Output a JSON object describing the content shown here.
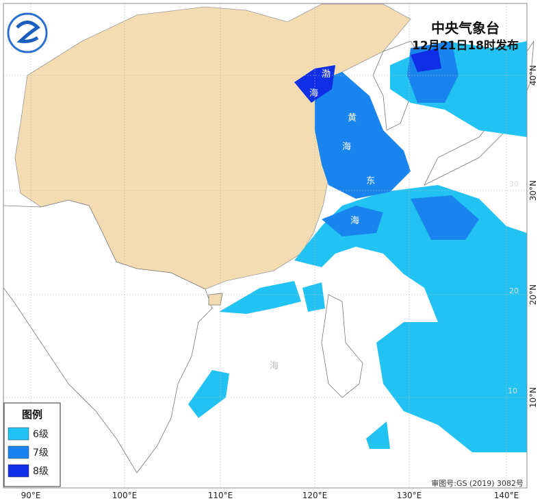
{
  "header": {
    "agency": "中央气象台",
    "issued": "12月21日18时发布"
  },
  "legend": {
    "title": "图例",
    "items": [
      {
        "label": "6级",
        "color": "#22c3f2"
      },
      {
        "label": "7级",
        "color": "#1a84ee"
      },
      {
        "label": "8级",
        "color": "#0f2ee6"
      }
    ]
  },
  "longitude_labels": [
    "90°E",
    "100°E",
    "110°E",
    "120°E",
    "130°E",
    "140°E"
  ],
  "latitude_labels": [
    "40°N",
    "30°N",
    "20°N",
    "10°N"
  ],
  "inner_grid_labels": [
    "30",
    "20",
    "10"
  ],
  "sea_labels": [
    "渤",
    "海",
    "黄",
    "海",
    "东",
    "海",
    "海"
  ],
  "approval": "审图号:GS (2019) 3082号"
}
